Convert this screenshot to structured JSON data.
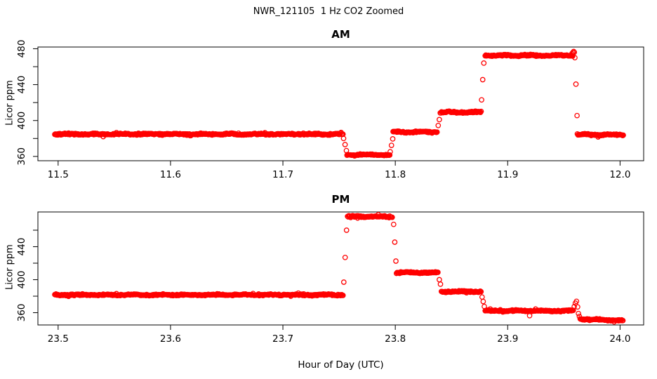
{
  "figure": {
    "title": "NWR_121105  1 Hz CO2 Zoomed",
    "xlabel": "Hour of Day (UTC)",
    "point_color": "#ff0000",
    "axis_color": "#000000",
    "background_color": "#ffffff"
  },
  "chart_data": [
    {
      "panel": "AM",
      "type": "scatter",
      "title": "AM",
      "ylabel": "Licor ppm",
      "marker": "open-circle",
      "series_name": "1 Hz CO2",
      "xlim": [
        11.482,
        12.021
      ],
      "ylim": [
        355.2,
        481.9
      ],
      "x_ticks": [
        {
          "value": 11.5,
          "label": "11.5"
        },
        {
          "value": 11.6,
          "label": "11.6"
        },
        {
          "value": 11.7,
          "label": "11.7"
        },
        {
          "value": 11.8,
          "label": "11.8"
        },
        {
          "value": 11.9,
          "label": "11.9"
        },
        {
          "value": 12.0,
          "label": "12.0"
        }
      ],
      "y_ticks": [
        {
          "value": 360,
          "label": "360"
        },
        {
          "value": 380,
          "label": ""
        },
        {
          "value": 400,
          "label": "400"
        },
        {
          "value": 420,
          "label": ""
        },
        {
          "value": 440,
          "label": "440"
        },
        {
          "value": 460,
          "label": ""
        },
        {
          "value": 480,
          "label": "480"
        }
      ],
      "sample_interval_hours": 0.00056,
      "noise_ppm": 1.0,
      "segments": [
        {
          "t0": 11.497,
          "t1": 11.7535,
          "v0": 384.8
        },
        {
          "t0": 11.757,
          "t1": 11.7955,
          "v0": 361.8
        },
        {
          "t0": 11.798,
          "t1": 11.8375,
          "v0": 387.3
        },
        {
          "t0": 11.84,
          "t1": 11.8765,
          "v0": 409.2
        },
        {
          "t0": 11.88,
          "t1": 11.958,
          "v0": 472.5
        },
        {
          "t0": 11.962,
          "t1": 12.003,
          "v0": 384.3
        }
      ],
      "extra_points": [
        [
          11.754,
          380.0
        ],
        [
          11.7553,
          373.2
        ],
        [
          11.7565,
          366.5
        ],
        [
          11.7955,
          365.2
        ],
        [
          11.7966,
          372.3
        ],
        [
          11.7977,
          379.5
        ],
        [
          11.8382,
          394.5
        ],
        [
          11.8392,
          401.0
        ],
        [
          11.8768,
          423.0
        ],
        [
          11.8778,
          445.5
        ],
        [
          11.8788,
          464.0
        ],
        [
          11.9572,
          474.5
        ],
        [
          11.958,
          475.8
        ],
        [
          11.9587,
          477.0
        ],
        [
          11.9593,
          476.0
        ],
        [
          11.9598,
          470.0
        ],
        [
          11.9607,
          440.5
        ],
        [
          11.9617,
          405.5
        ]
      ]
    },
    {
      "panel": "PM",
      "type": "scatter",
      "title": "PM",
      "ylabel": "Licor ppm",
      "marker": "open-circle",
      "series_name": "1 Hz CO2",
      "xlim": [
        23.482,
        24.021
      ],
      "ylim": [
        345.1,
        482.1
      ],
      "x_ticks": [
        {
          "value": 23.5,
          "label": "23.5"
        },
        {
          "value": 23.6,
          "label": "23.6"
        },
        {
          "value": 23.7,
          "label": "23.7"
        },
        {
          "value": 23.8,
          "label": "23.8"
        },
        {
          "value": 23.9,
          "label": "23.9"
        },
        {
          "value": 24.0,
          "label": "24.0"
        }
      ],
      "y_ticks": [
        {
          "value": 360,
          "label": "360"
        },
        {
          "value": 380,
          "label": ""
        },
        {
          "value": 400,
          "label": "400"
        },
        {
          "value": 420,
          "label": ""
        },
        {
          "value": 440,
          "label": "440"
        },
        {
          "value": 460,
          "label": ""
        }
      ],
      "sample_interval_hours": 0.00056,
      "noise_ppm": 1.0,
      "segments": [
        {
          "t0": 23.497,
          "t1": 23.7535,
          "v0": 381.6
        },
        {
          "t0": 23.7575,
          "t1": 23.7975,
          "v0": 476.5
        },
        {
          "t0": 23.801,
          "t1": 23.8385,
          "v0": 408.6
        },
        {
          "t0": 23.841,
          "t1": 23.8765,
          "v0": 385.6
        },
        {
          "t0": 23.88,
          "t1": 23.9585,
          "v0": 362.3
        },
        {
          "t0": 23.9645,
          "t1": 24.003,
          "v0": 352.3,
          "v1": 350.3
        }
      ],
      "extra_points": [
        [
          23.7542,
          397.0
        ],
        [
          23.7554,
          427.0
        ],
        [
          23.7566,
          460.0
        ],
        [
          23.7985,
          467.0
        ],
        [
          23.7995,
          445.5
        ],
        [
          23.8005,
          422.5
        ],
        [
          23.8392,
          400.0
        ],
        [
          23.8402,
          394.5
        ],
        [
          23.8772,
          379.0
        ],
        [
          23.8782,
          373.5
        ],
        [
          23.8792,
          367.5
        ],
        [
          23.9195,
          356.3
        ],
        [
          23.9592,
          367.5
        ],
        [
          23.9602,
          371.5
        ],
        [
          23.9612,
          373.8
        ],
        [
          23.9622,
          367.0
        ],
        [
          23.963,
          359.0
        ],
        [
          23.9638,
          355.5
        ]
      ]
    }
  ]
}
